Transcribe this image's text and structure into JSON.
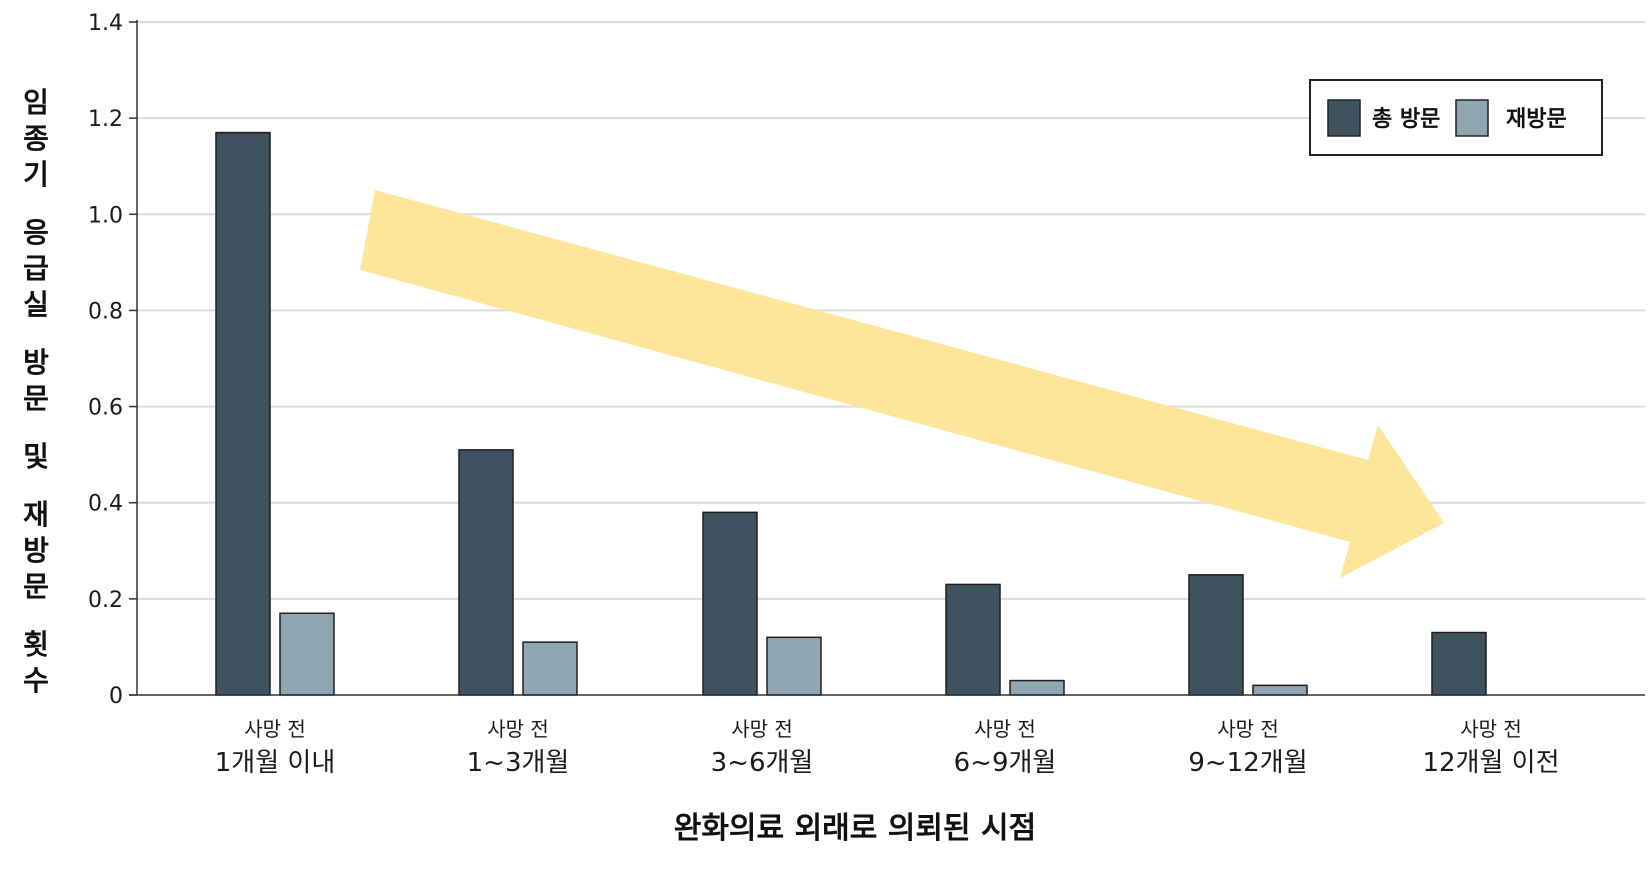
{
  "chart_data": {
    "type": "bar",
    "title": "",
    "xlabel": "완화의료 외래로 의뢰된 시점",
    "ylabel_lines": [
      "임종기",
      "응급실",
      "방문",
      "및",
      "재방문",
      "횟수"
    ],
    "ylim": [
      0,
      1.4
    ],
    "yticks": [
      "0",
      "0.2",
      "0.4",
      "0.6",
      "0.8",
      "1.0",
      "1.2",
      "1.4"
    ],
    "ytick_values": [
      0,
      0.2,
      0.4,
      0.6,
      0.8,
      1.0,
      1.2,
      1.4
    ],
    "grid": true,
    "legend_position": "top-right",
    "categories": [
      {
        "sub": "사망 전",
        "main": "1개월 이내"
      },
      {
        "sub": "사망 전",
        "main": "1~3개월"
      },
      {
        "sub": "사망 전",
        "main": "3~6개월"
      },
      {
        "sub": "사망 전",
        "main": "6~9개월"
      },
      {
        "sub": "사망 전",
        "main": "9~12개월"
      },
      {
        "sub": "사망 전",
        "main": "12개월 이전"
      }
    ],
    "series": [
      {
        "name": "총 방문",
        "color": "#3f5260",
        "values": [
          1.17,
          0.51,
          0.38,
          0.23,
          0.25,
          0.13
        ]
      },
      {
        "name": "재방문",
        "color": "#91a6b3",
        "values": [
          0.17,
          0.11,
          0.12,
          0.03,
          0.02,
          0.0
        ]
      }
    ],
    "annotation": {
      "type": "trend-arrow",
      "direction": "decreasing",
      "color": "#fde69a"
    }
  }
}
